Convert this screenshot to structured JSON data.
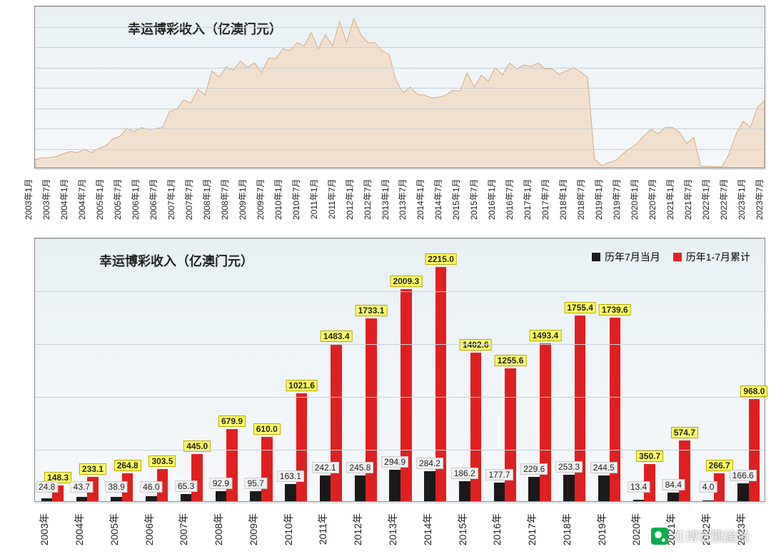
{
  "chart1": {
    "type": "area",
    "title": "幸运博彩收入（亿澳门元）",
    "title_fontsize": 18,
    "background_gradient": [
      "#e8f0f4",
      "#f5f8fa"
    ],
    "area_fill": "#f2e0cf",
    "area_stroke": "#d8a97a",
    "grid_color": "#c8d0d6",
    "ylim": [
      0,
      400
    ],
    "ytick_step": 50,
    "yticks": [
      "0.00",
      "50.00",
      "100.00",
      "150.00",
      "200.00",
      "250.00",
      "300.00",
      "350.00",
      "400.00"
    ],
    "xlabels": [
      "2003年1月",
      "2003年7月",
      "2004年1月",
      "2004年7月",
      "2005年1月",
      "2005年7月",
      "2006年1月",
      "2006年7月",
      "2007年1月",
      "2007年7月",
      "2008年1月",
      "2008年7月",
      "2009年1月",
      "2009年7月",
      "2010年1月",
      "2010年7月",
      "2011年1月",
      "2011年7月",
      "2012年1月",
      "2012年7月",
      "2013年1月",
      "2013年7月",
      "2014年1月",
      "2014年7月",
      "2015年1月",
      "2015年7月",
      "2016年1月",
      "2016年7月",
      "2017年1月",
      "2017年7月",
      "2018年1月",
      "2018年7月",
      "2019年1月",
      "2019年7月",
      "2020年1月",
      "2020年7月",
      "2021年1月",
      "2021年7月",
      "2022年1月",
      "2022年7月",
      "2023年1月",
      "2023年7月"
    ],
    "values": [
      20,
      25,
      25,
      28,
      35,
      40,
      38,
      45,
      38,
      48,
      55,
      72,
      78,
      98,
      90,
      100,
      95,
      97,
      100,
      140,
      145,
      168,
      160,
      195,
      180,
      240,
      225,
      250,
      242,
      265,
      248,
      260,
      236,
      272,
      270,
      295,
      290,
      310,
      302,
      335,
      295,
      330,
      302,
      362,
      310,
      370,
      330,
      310,
      310,
      290,
      280,
      215,
      186,
      200,
      182,
      180,
      173,
      175,
      180,
      192,
      190,
      235,
      200,
      229,
      215,
      248,
      230,
      260,
      245,
      255,
      251,
      260,
      245,
      245,
      232,
      240,
      248,
      238,
      225,
      22,
      5,
      13,
      18,
      35,
      48,
      60,
      80,
      95,
      84,
      100,
      100,
      88,
      60,
      75,
      4,
      4,
      3,
      3,
      35,
      85,
      115,
      100,
      150,
      167
    ]
  },
  "chart2": {
    "type": "bar",
    "title": "幸运博彩收入（亿澳门元）",
    "title_fontsize": 18,
    "background_gradient": [
      "#e8f0f4",
      "#f5f8fa"
    ],
    "grid_color": "#c8d0d6",
    "ylim": [
      0,
      2500
    ],
    "ytick_step": 500,
    "yticks": [
      "0",
      "500",
      "1000",
      "1500",
      "2000",
      "2500"
    ],
    "categories": [
      "2003年",
      "2004年",
      "2005年",
      "2006年",
      "2007年",
      "2008年",
      "2009年",
      "2010年",
      "2011年",
      "2012年",
      "2013年",
      "2014年",
      "2015年",
      "2016年",
      "2017年",
      "2018年",
      "2019年",
      "2020年",
      "2021年",
      "2022年",
      "2023年"
    ],
    "series": [
      {
        "name": "历年7月当月",
        "color": "#1a1a1a",
        "values": [
          24.8,
          43.7,
          38.9,
          46.0,
          65.3,
          92.9,
          95.7,
          163.1,
          242.1,
          245.8,
          294.9,
          284.2,
          186.2,
          177.7,
          229.6,
          253.3,
          244.5,
          13.4,
          84.4,
          4.0,
          166.6
        ]
      },
      {
        "name": "历年1-7月累计",
        "color": "#e02020",
        "values": [
          148.3,
          233.1,
          264.8,
          303.5,
          445.0,
          679.9,
          610.0,
          1021.6,
          1483.4,
          1733.1,
          2009.3,
          2215.0,
          1402.6,
          1255.6,
          1493.4,
          1755.4,
          1739.6,
          350.7,
          574.7,
          266.7,
          968.0
        ]
      }
    ],
    "label_bg_yellow": "#ffff66",
    "label_bg_grey": "#f0f0f0",
    "bar_width_ratio": 0.32
  },
  "watermark": {
    "text": "任博宏觀論道"
  }
}
